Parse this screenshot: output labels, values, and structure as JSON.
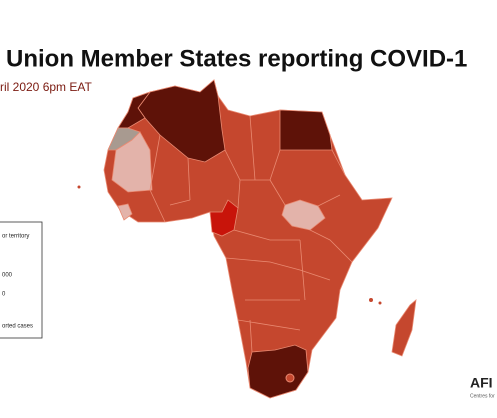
{
  "header": {
    "title": "Union Member States reporting COVID-1",
    "subtitle": "ril 2020 6pm EAT"
  },
  "legend": {
    "items": [
      "or territory",
      "000",
      "0",
      "orted cases"
    ]
  },
  "logo": {
    "name": "AFI",
    "tagline": "Centres for"
  }
}
